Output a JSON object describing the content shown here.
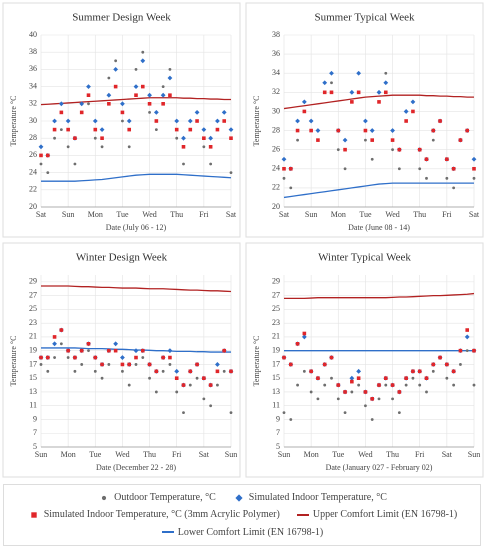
{
  "chart_data": [
    {
      "type": "scatter",
      "title": "Summer Design Week",
      "xlabel": "Date (July 06 - 12)",
      "ylabel": "Temperature °C",
      "x": [
        0,
        0.25,
        0.5,
        0.75,
        1,
        1.25,
        1.5,
        1.75,
        2,
        2.25,
        2.5,
        2.75,
        3,
        3.25,
        3.5,
        3.75,
        4,
        4.25,
        4.5,
        4.75,
        5,
        5.25,
        5.5,
        5.75,
        6,
        6.25,
        6.5,
        6.75,
        7
      ],
      "xlim": [
        0,
        7
      ],
      "xticks": [
        {
          "value": 0,
          "label": "Sat"
        },
        {
          "value": 1,
          "label": "Sun"
        },
        {
          "value": 2,
          "label": "Mon"
        },
        {
          "value": 3,
          "label": "Tue"
        },
        {
          "value": 4,
          "label": "Wed"
        },
        {
          "value": 5,
          "label": "Thu"
        },
        {
          "value": 6,
          "label": "Fri"
        },
        {
          "value": 7,
          "label": "Sat"
        }
      ],
      "ylim": [
        20,
        40
      ],
      "yticks": [
        20,
        22,
        24,
        26,
        28,
        30,
        32,
        34,
        36,
        38,
        40
      ],
      "grid": true,
      "series": [
        {
          "color": "#6e6e6e",
          "marker": "circle",
          "values": [
            25,
            24,
            28,
            29,
            27,
            25,
            31,
            32,
            28,
            27,
            35,
            37,
            30,
            27,
            36,
            38,
            31,
            29,
            34,
            36,
            28,
            25,
            29,
            31,
            27,
            25,
            29,
            31,
            24
          ]
        },
        {
          "color": "#2f6fc9",
          "marker": "diamond",
          "values": [
            27,
            26,
            30,
            32,
            30,
            28,
            32,
            34,
            30,
            29,
            33,
            36,
            32,
            30,
            34,
            37,
            33,
            31,
            33,
            35,
            30,
            28,
            30,
            31,
            29,
            28,
            30,
            31,
            29
          ]
        },
        {
          "color": "#e0262a",
          "marker": "square",
          "values": [
            26,
            26,
            29,
            31,
            29,
            28,
            31,
            33,
            29,
            28,
            32,
            34,
            31,
            29,
            33,
            34,
            32,
            30,
            32,
            33,
            29,
            27,
            29,
            30,
            28,
            27,
            29,
            30,
            28
          ]
        },
        {
          "color": "#b22222",
          "marker": "line",
          "values": [
            31.9,
            31.95,
            32,
            32.05,
            32.1,
            32.15,
            32.2,
            32.25,
            32.3,
            32.35,
            32.4,
            32.45,
            32.5,
            32.55,
            32.6,
            32.65,
            32.7,
            32.7,
            32.7,
            32.7,
            32.7,
            32.65,
            32.65,
            32.6,
            32.6,
            32.55,
            32.55,
            32.5,
            32.5
          ]
        },
        {
          "color": "#2f6fc9",
          "marker": "line",
          "values": [
            23,
            23,
            23,
            23,
            23,
            23,
            23.05,
            23.1,
            23.15,
            23.2,
            23.3,
            23.4,
            23.5,
            23.6,
            23.7,
            23.75,
            23.8,
            23.8,
            23.8,
            23.8,
            23.8,
            23.75,
            23.7,
            23.65,
            23.6,
            23.55,
            23.5,
            23.45,
            23.4
          ]
        }
      ]
    },
    {
      "type": "scatter",
      "title": "Summer Typical Week",
      "xlabel": "Date (June 08 - 14)",
      "ylabel": "Temperature °C",
      "x": [
        0,
        0.25,
        0.5,
        0.75,
        1,
        1.25,
        1.5,
        1.75,
        2,
        2.25,
        2.5,
        2.75,
        3,
        3.25,
        3.5,
        3.75,
        4,
        4.25,
        4.5,
        4.75,
        5,
        5.25,
        5.5,
        5.75,
        6,
        6.25,
        6.5,
        6.75,
        7
      ],
      "xlim": [
        0,
        7
      ],
      "xticks": [
        {
          "value": 0,
          "label": "Sat"
        },
        {
          "value": 1,
          "label": "Sun"
        },
        {
          "value": 2,
          "label": "Mon"
        },
        {
          "value": 3,
          "label": "Tue"
        },
        {
          "value": 4,
          "label": "Wed"
        },
        {
          "value": 5,
          "label": "Thu"
        },
        {
          "value": 6,
          "label": "Fri"
        },
        {
          "value": 7,
          "label": "Sat"
        }
      ],
      "ylim": [
        20,
        38
      ],
      "yticks": [
        20,
        22,
        24,
        26,
        28,
        30,
        32,
        34,
        36,
        38
      ],
      "grid": true,
      "series": [
        {
          "color": "#6e6e6e",
          "marker": "circle",
          "values": [
            23,
            22,
            27,
            30,
            28,
            27,
            32,
            33,
            26,
            24,
            31,
            34,
            27,
            25,
            32,
            34,
            26,
            24,
            29,
            31,
            24,
            23,
            27,
            29,
            23,
            22,
            27,
            28,
            23
          ]
        },
        {
          "color": "#2f6fc9",
          "marker": "diamond",
          "values": [
            25,
            24,
            29,
            31,
            29,
            28,
            33,
            34,
            28,
            27,
            32,
            34,
            29,
            28,
            32,
            33,
            28,
            26,
            30,
            31,
            26,
            25,
            28,
            29,
            25,
            24,
            27,
            28,
            25
          ]
        },
        {
          "color": "#e0262a",
          "marker": "square",
          "values": [
            24,
            24,
            28,
            30,
            28,
            27,
            32,
            32,
            28,
            26,
            31,
            32,
            28,
            27,
            31,
            32,
            27,
            26,
            29,
            30,
            26,
            25,
            28,
            29,
            25,
            24,
            27,
            28,
            24
          ]
        },
        {
          "color": "#b22222",
          "marker": "line",
          "values": [
            30.3,
            30.4,
            30.5,
            30.6,
            30.7,
            30.8,
            30.9,
            31,
            31.1,
            31.2,
            31.3,
            31.4,
            31.5,
            31.55,
            31.6,
            31.65,
            31.7,
            31.7,
            31.7,
            31.7,
            31.7,
            31.65,
            31.65,
            31.6,
            31.6,
            31.55,
            31.55,
            31.5,
            31.5
          ]
        },
        {
          "color": "#2f6fc9",
          "marker": "line",
          "values": [
            21,
            21.1,
            21.2,
            21.3,
            21.4,
            21.5,
            21.6,
            21.7,
            21.8,
            21.9,
            22,
            22.1,
            22.2,
            22.3,
            22.4,
            22.45,
            22.5,
            22.5,
            22.5,
            22.5,
            22.5,
            22.5,
            22.5,
            22.5,
            22.5,
            22.5,
            22.5,
            22.5,
            22.5
          ]
        }
      ]
    },
    {
      "type": "scatter",
      "title": "Winter Design Week",
      "xlabel": "Date (December 22 - 28)",
      "ylabel": "Temperature °C",
      "x": [
        0,
        0.25,
        0.5,
        0.75,
        1,
        1.25,
        1.5,
        1.75,
        2,
        2.25,
        2.5,
        2.75,
        3,
        3.25,
        3.5,
        3.75,
        4,
        4.25,
        4.5,
        4.75,
        5,
        5.25,
        5.5,
        5.75,
        6,
        6.25,
        6.5,
        6.75,
        7
      ],
      "xlim": [
        0,
        7
      ],
      "xticks": [
        {
          "value": 0,
          "label": "Sun"
        },
        {
          "value": 1,
          "label": "Mon"
        },
        {
          "value": 2,
          "label": "Tue"
        },
        {
          "value": 3,
          "label": "Wed"
        },
        {
          "value": 4,
          "label": "Thu"
        },
        {
          "value": 5,
          "label": "Fri"
        },
        {
          "value": 6,
          "label": "Sat"
        },
        {
          "value": 7,
          "label": "Sun"
        }
      ],
      "ylim": [
        5,
        30
      ],
      "yticks": [
        5,
        7,
        9,
        11,
        13,
        15,
        17,
        19,
        21,
        23,
        25,
        27,
        29
      ],
      "grid": true,
      "series": [
        {
          "color": "#6e6e6e",
          "marker": "circle",
          "values": [
            17,
            16,
            18,
            20,
            18,
            16,
            17,
            19,
            16,
            15,
            17,
            19,
            16,
            14,
            17,
            18,
            15,
            13,
            16,
            17,
            13,
            10,
            14,
            15,
            12,
            11,
            14,
            16,
            10
          ]
        },
        {
          "color": "#2f6fc9",
          "marker": "diamond",
          "values": [
            18,
            18,
            20,
            22,
            19,
            18,
            19,
            20,
            18,
            17,
            19,
            20,
            18,
            17,
            19,
            19,
            17,
            16,
            18,
            19,
            16,
            14,
            16,
            17,
            15,
            14,
            17,
            19,
            16
          ]
        },
        {
          "color": "#e0262a",
          "marker": "square",
          "values": [
            18,
            18,
            21,
            22,
            19,
            18,
            19,
            20,
            18,
            17,
            19,
            19,
            17,
            17,
            18,
            19,
            17,
            16,
            18,
            18,
            15,
            14,
            16,
            17,
            15,
            14,
            16,
            19,
            16
          ]
        },
        {
          "color": "#b22222",
          "marker": "line",
          "values": [
            28.4,
            28.4,
            28.4,
            28.4,
            28.4,
            28.35,
            28.3,
            28.3,
            28.25,
            28.2,
            28.2,
            28.15,
            28.1,
            28.1,
            28.1,
            28.05,
            28,
            28,
            28,
            27.95,
            27.9,
            27.85,
            27.8,
            27.8,
            27.75,
            27.7,
            27.7,
            27.65,
            27.6
          ]
        },
        {
          "color": "#2f6fc9",
          "marker": "line",
          "values": [
            19.4,
            19.4,
            19.4,
            19.4,
            19.4,
            19.4,
            19.35,
            19.3,
            19.3,
            19.3,
            19.25,
            19.2,
            19.2,
            19.15,
            19.1,
            19.1,
            19.05,
            19,
            19,
            18.95,
            18.9,
            18.9,
            18.9,
            18.85,
            18.85,
            18.8,
            18.8,
            18.8,
            18.8
          ]
        }
      ]
    },
    {
      "type": "scatter",
      "title": "Winter Typical Week",
      "xlabel": "Date (January 027 - February 02)",
      "ylabel": "Temperature °C",
      "x": [
        0,
        0.25,
        0.5,
        0.75,
        1,
        1.25,
        1.5,
        1.75,
        2,
        2.25,
        2.5,
        2.75,
        3,
        3.25,
        3.5,
        3.75,
        4,
        4.25,
        4.5,
        4.75,
        5,
        5.25,
        5.5,
        5.75,
        6,
        6.25,
        6.5,
        6.75,
        7
      ],
      "xlim": [
        0,
        7
      ],
      "xticks": [
        {
          "value": 0,
          "label": "Sun"
        },
        {
          "value": 1,
          "label": "Mon"
        },
        {
          "value": 2,
          "label": "Tue"
        },
        {
          "value": 3,
          "label": "Wed"
        },
        {
          "value": 4,
          "label": "Thu"
        },
        {
          "value": 5,
          "label": "Fri"
        },
        {
          "value": 6,
          "label": "Sat"
        },
        {
          "value": 7,
          "label": "Sun"
        }
      ],
      "ylim": [
        5,
        30
      ],
      "yticks": [
        5,
        7,
        9,
        11,
        13,
        15,
        17,
        19,
        21,
        23,
        25,
        27,
        29
      ],
      "grid": true,
      "series": [
        {
          "color": "#6e6e6e",
          "marker": "circle",
          "values": [
            10,
            9,
            14,
            16,
            13,
            12,
            14,
            15,
            12,
            10,
            13,
            14,
            11,
            9,
            12,
            14,
            12,
            10,
            14,
            15,
            14,
            13,
            16,
            18,
            15,
            14,
            17,
            19,
            14
          ]
        },
        {
          "color": "#2f6fc9",
          "marker": "diamond",
          "values": [
            18,
            17,
            20,
            21,
            16,
            15,
            17,
            18,
            14,
            13,
            15,
            16,
            13,
            12,
            14,
            15,
            14,
            13,
            15,
            16,
            16,
            15,
            17,
            18,
            17,
            16,
            19,
            21,
            19
          ]
        },
        {
          "color": "#e0262a",
          "marker": "square",
          "values": [
            18,
            17,
            20,
            21.5,
            16,
            15,
            17,
            18,
            14,
            13,
            14.5,
            15,
            13,
            12,
            14,
            15,
            14,
            13,
            15,
            16,
            16,
            15,
            17,
            18,
            17,
            16,
            19,
            22,
            19
          ]
        },
        {
          "color": "#b22222",
          "marker": "line",
          "values": [
            26.6,
            26.6,
            26.6,
            26.6,
            26.65,
            26.7,
            26.7,
            26.7,
            26.7,
            26.7,
            26.7,
            26.7,
            26.7,
            26.7,
            26.7,
            26.7,
            26.75,
            26.8,
            26.8,
            26.85,
            26.9,
            26.95,
            27,
            27,
            27.05,
            27.1,
            27.15,
            27.2,
            27.3
          ]
        },
        {
          "color": "#2f6fc9",
          "marker": "line",
          "values": [
            19,
            19,
            19,
            19,
            19,
            19,
            19,
            19,
            19,
            19,
            19,
            19,
            19,
            19,
            19,
            19,
            19,
            19,
            19,
            19,
            19,
            19,
            19,
            19,
            19,
            19,
            19,
            19,
            19
          ]
        }
      ]
    }
  ],
  "legend": [
    {
      "name": "Outdoor Temperature, °C",
      "color": "#6e6e6e",
      "marker": "circle"
    },
    {
      "name": "Simulated Indoor Temperature, °C",
      "color": "#2f6fc9",
      "marker": "diamond"
    },
    {
      "name": "Simulated Indoor Temperature, °C (3mm Acrylic Polymer)",
      "color": "#e0262a",
      "marker": "square"
    },
    {
      "name": "Upper Comfort Limit (EN 16798-1)",
      "color": "#b22222",
      "marker": "line"
    },
    {
      "name": "Lower Comfort Limit (EN 16798-1)",
      "color": "#2f6fc9",
      "marker": "line"
    }
  ]
}
